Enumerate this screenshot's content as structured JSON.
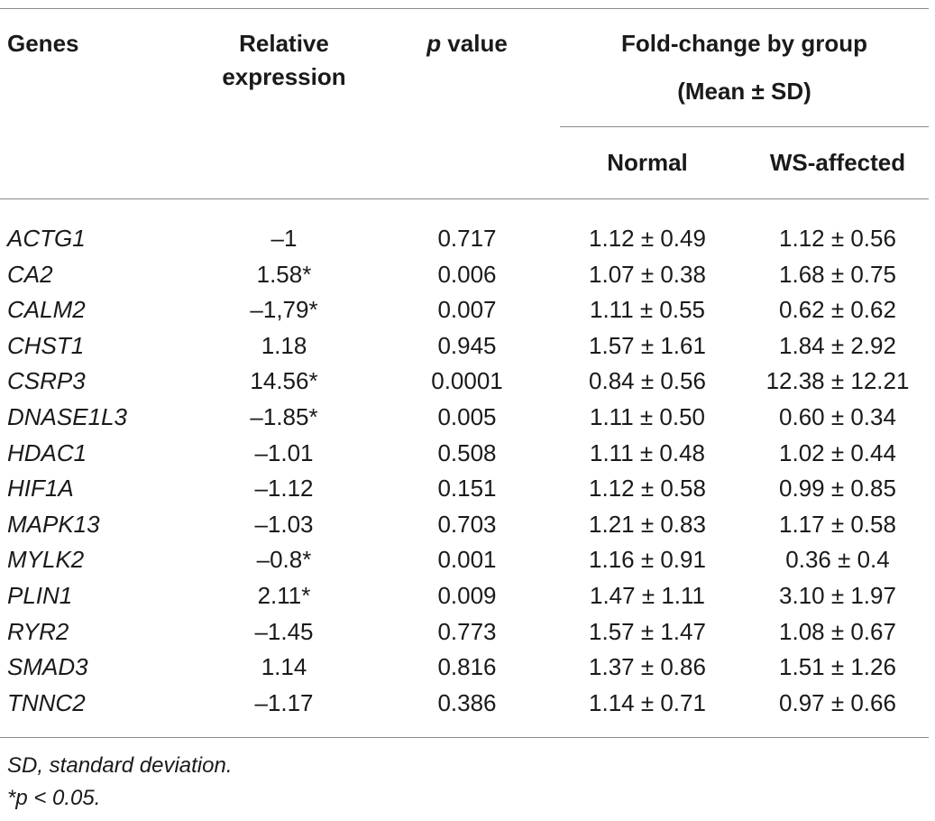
{
  "table": {
    "headers": {
      "genes": "Genes",
      "relative_line1": "Relative",
      "relative_line2": "expression",
      "p_italic": "p",
      "p_rest": " value",
      "foldchange_line1": "Fold-change by group",
      "foldchange_line2": "(Mean ± SD)",
      "normal": "Normal",
      "ws_affected": "WS-affected"
    },
    "rows": [
      {
        "gene": "ACTG1",
        "relative": "–1",
        "p": "0.717",
        "normal": "1.12 ± 0.49",
        "ws": "1.12 ± 0.56"
      },
      {
        "gene": "CA2",
        "relative": "1.58*",
        "p": "0.006",
        "normal": "1.07 ± 0.38",
        "ws": "1.68 ± 0.75"
      },
      {
        "gene": "CALM2",
        "relative": "–1,79*",
        "p": "0.007",
        "normal": "1.11 ± 0.55",
        "ws": "0.62 ± 0.62"
      },
      {
        "gene": "CHST1",
        "relative": "1.18",
        "p": "0.945",
        "normal": "1.57 ± 1.61",
        "ws": "1.84 ± 2.92"
      },
      {
        "gene": "CSRP3",
        "relative": "14.56*",
        "p": "0.0001",
        "normal": "0.84 ± 0.56",
        "ws": "12.38 ± 12.21"
      },
      {
        "gene": "DNASE1L3",
        "relative": "–1.85*",
        "p": "0.005",
        "normal": "1.11 ± 0.50",
        "ws": "0.60 ± 0.34"
      },
      {
        "gene": "HDAC1",
        "relative": "–1.01",
        "p": "0.508",
        "normal": "1.11 ± 0.48",
        "ws": "1.02 ± 0.44"
      },
      {
        "gene": "HIF1A",
        "relative": "–1.12",
        "p": "0.151",
        "normal": "1.12 ± 0.58",
        "ws": "0.99 ± 0.85"
      },
      {
        "gene": "MAPK13",
        "relative": "–1.03",
        "p": "0.703",
        "normal": "1.21 ± 0.83",
        "ws": "1.17 ± 0.58"
      },
      {
        "gene": "MYLK2",
        "relative": "–0.8*",
        "p": "0.001",
        "normal": "1.16 ± 0.91",
        "ws": "0.36 ± 0.4"
      },
      {
        "gene": "PLIN1",
        "relative": "2.11*",
        "p": "0.009",
        "normal": "1.47 ± 1.11",
        "ws": "3.10 ± 1.97"
      },
      {
        "gene": "RYR2",
        "relative": "–1.45",
        "p": "0.773",
        "normal": "1.57 ± 1.47",
        "ws": "1.08 ± 0.67"
      },
      {
        "gene": "SMAD3",
        "relative": "1.14",
        "p": "0.816",
        "normal": "1.37 ± 0.86",
        "ws": "1.51 ± 1.26"
      },
      {
        "gene": "TNNC2",
        "relative": "–1.17",
        "p": "0.386",
        "normal": "1.14 ± 0.71",
        "ws": "0.97 ± 0.66"
      }
    ],
    "footnotes": [
      "SD, standard deviation.",
      "*p < 0.05."
    ]
  }
}
